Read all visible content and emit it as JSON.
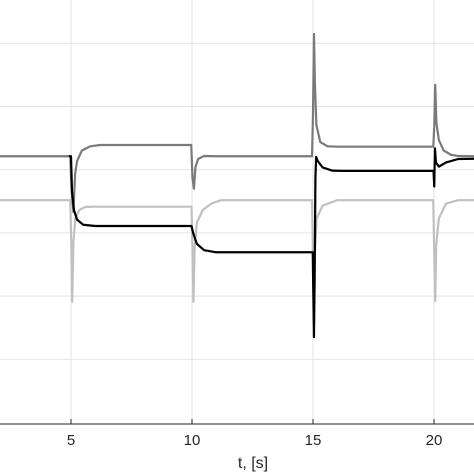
{
  "chart_data": {
    "type": "line",
    "title": "",
    "xlabel": "t, [s]",
    "ylabel": "",
    "xlim": [
      0.0,
      22.0
    ],
    "ylim": [
      0.0,
      1.0
    ],
    "y_values_are_normalized": true,
    "grid": true,
    "x_ticks": [
      5,
      10,
      15,
      20
    ],
    "x_tick_labels": [
      "5",
      "10",
      "15",
      "20"
    ],
    "y_gridlines": [
      0.1526,
      0.3017,
      0.4508,
      0.5996,
      0.7489,
      0.8981
    ],
    "series": [
      {
        "color": "#7a7a7a",
        "width": 2.2,
        "points": [
          [
            0,
            0.6315
          ],
          [
            4.85,
            0.6315
          ],
          [
            4.97,
            0.6315
          ],
          [
            5.02,
            0.555
          ],
          [
            5.1,
            0.5
          ],
          [
            5.17,
            0.59
          ],
          [
            5.25,
            0.62
          ],
          [
            5.45,
            0.645
          ],
          [
            5.8,
            0.655
          ],
          [
            6.2,
            0.658
          ],
          [
            9.93,
            0.658
          ],
          [
            9.97,
            0.658
          ],
          [
            10.02,
            0.58
          ],
          [
            10.08,
            0.555
          ],
          [
            10.14,
            0.605
          ],
          [
            10.25,
            0.625
          ],
          [
            10.5,
            0.632
          ],
          [
            11,
            0.6315
          ],
          [
            14.9,
            0.6315
          ],
          [
            14.96,
            0.6315
          ],
          [
            15.0,
            0.73
          ],
          [
            15.04,
            0.92
          ],
          [
            15.08,
            0.8
          ],
          [
            15.14,
            0.705
          ],
          [
            15.3,
            0.665
          ],
          [
            15.6,
            0.655
          ],
          [
            16,
            0.654
          ],
          [
            19.92,
            0.654
          ],
          [
            19.97,
            0.654
          ],
          [
            20.01,
            0.7
          ],
          [
            20.05,
            0.8
          ],
          [
            20.1,
            0.71
          ],
          [
            20.2,
            0.67
          ],
          [
            20.4,
            0.645
          ],
          [
            20.7,
            0.635
          ],
          [
            21,
            0.632
          ],
          [
            22,
            0.6315
          ]
        ]
      },
      {
        "color": "#c0c0c0",
        "width": 2.2,
        "points": [
          [
            0,
            0.5278
          ],
          [
            4.9,
            0.5278
          ],
          [
            4.97,
            0.5278
          ],
          [
            5.01,
            0.43
          ],
          [
            5.05,
            0.288
          ],
          [
            5.1,
            0.43
          ],
          [
            5.18,
            0.485
          ],
          [
            5.35,
            0.505
          ],
          [
            5.6,
            0.512
          ],
          [
            6,
            0.5125
          ],
          [
            9.93,
            0.5125
          ],
          [
            9.98,
            0.5125
          ],
          [
            10.02,
            0.41
          ],
          [
            10.06,
            0.288
          ],
          [
            10.11,
            0.42
          ],
          [
            10.2,
            0.475
          ],
          [
            10.45,
            0.505
          ],
          [
            10.8,
            0.52
          ],
          [
            11.2,
            0.5278
          ],
          [
            14.9,
            0.5278
          ],
          [
            14.96,
            0.5278
          ],
          [
            15.0,
            0.4
          ],
          [
            15.04,
            0.23
          ],
          [
            15.08,
            0.4
          ],
          [
            15.15,
            0.485
          ],
          [
            15.4,
            0.515
          ],
          [
            16,
            0.5278
          ],
          [
            19.93,
            0.5278
          ],
          [
            19.97,
            0.5278
          ],
          [
            20.01,
            0.4
          ],
          [
            20.05,
            0.29
          ],
          [
            20.09,
            0.42
          ],
          [
            20.2,
            0.485
          ],
          [
            20.5,
            0.52
          ],
          [
            21,
            0.5278
          ],
          [
            22,
            0.5278
          ]
        ]
      },
      {
        "color": "#000000",
        "width": 2.2,
        "points": [
          [
            4.95,
            0.6315
          ],
          [
            5.0,
            0.6315
          ],
          [
            5.04,
            0.55
          ],
          [
            5.12,
            0.505
          ],
          [
            5.25,
            0.482
          ],
          [
            5.5,
            0.47
          ],
          [
            6.0,
            0.467
          ],
          [
            9.93,
            0.467
          ],
          [
            9.98,
            0.467
          ],
          [
            10.05,
            0.45
          ],
          [
            10.2,
            0.425
          ],
          [
            10.5,
            0.41
          ],
          [
            11.0,
            0.405
          ],
          [
            14.95,
            0.405
          ],
          [
            14.99,
            0.405
          ],
          [
            15.01,
            0.32
          ],
          [
            15.04,
            0.205
          ],
          [
            15.07,
            0.36
          ],
          [
            15.1,
            0.58
          ],
          [
            15.13,
            0.63
          ],
          [
            15.2,
            0.62
          ],
          [
            15.4,
            0.605
          ],
          [
            15.8,
            0.5975
          ],
          [
            16.2,
            0.597
          ],
          [
            19.95,
            0.597
          ],
          [
            19.98,
            0.597
          ],
          [
            20.01,
            0.56
          ],
          [
            20.04,
            0.65
          ],
          [
            20.08,
            0.617
          ],
          [
            20.2,
            0.607
          ],
          [
            20.5,
            0.617
          ],
          [
            21,
            0.625
          ],
          [
            22,
            0.626
          ]
        ]
      }
    ]
  }
}
